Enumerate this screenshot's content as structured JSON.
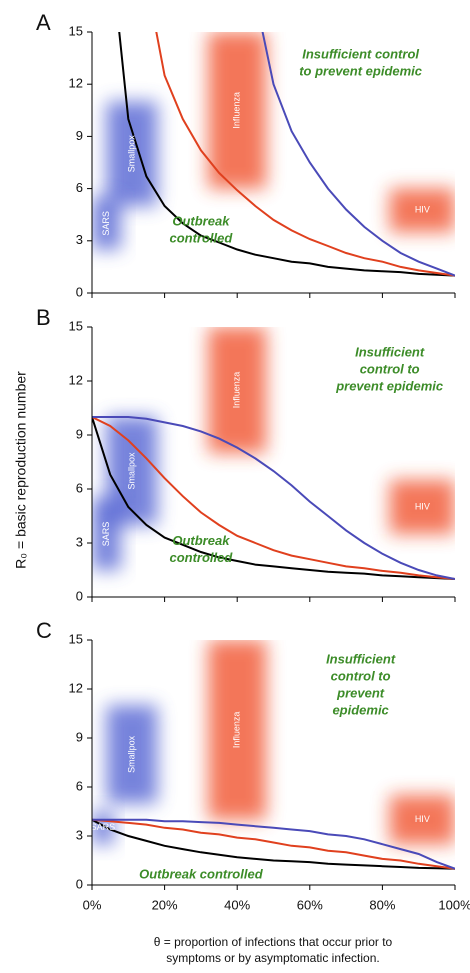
{
  "ylabel": "R₀ = basic reproduction number",
  "xlabel": [
    "θ = proportion of infections that occur prior to",
    "symptoms or by asymptomatic infection."
  ],
  "chart_data": [
    {
      "type": "line",
      "panel": "A",
      "x": [
        0,
        0.05,
        0.1,
        0.15,
        0.2,
        0.25,
        0.3,
        0.35,
        0.4,
        0.45,
        0.5,
        0.55,
        0.6,
        0.65,
        0.7,
        0.75,
        0.8,
        0.85,
        0.9,
        0.95,
        1
      ],
      "series": [
        {
          "color": "#000000",
          "values": [
            null,
            20,
            10,
            6.7,
            5,
            4,
            3.3,
            2.9,
            2.5,
            2.2,
            2,
            1.8,
            1.7,
            1.5,
            1.4,
            1.3,
            1.25,
            1.2,
            1.1,
            1.05,
            1
          ]
        },
        {
          "color": "#e0401e",
          "values": [
            null,
            null,
            null,
            18,
            12.5,
            10,
            8.2,
            6.9,
            5.9,
            5,
            4.2,
            3.6,
            3.1,
            2.7,
            2.3,
            2,
            1.8,
            1.5,
            1.3,
            1.15,
            1
          ]
        },
        {
          "color": "#4a4ab8",
          "values": [
            null,
            null,
            null,
            null,
            null,
            null,
            null,
            null,
            null,
            17,
            12,
            9.3,
            7.5,
            6,
            4.8,
            3.8,
            3,
            2.3,
            1.8,
            1.4,
            1
          ]
        }
      ],
      "regions": [
        {
          "name": "Smallpox",
          "color": "#4a5ad0",
          "x": [
            0.04,
            0.18
          ],
          "y": [
            5,
            11
          ]
        },
        {
          "name": "SARS",
          "color": "#4a5ad0",
          "x": [
            0,
            0.08
          ],
          "y": [
            2.5,
            5.5
          ]
        },
        {
          "name": "Influenza",
          "color": "#f04820",
          "x": [
            0.32,
            0.48
          ],
          "y": [
            6,
            15
          ]
        },
        {
          "name": "HIV",
          "color": "#f04820",
          "x": [
            0.82,
            1
          ],
          "y": [
            3.5,
            6
          ]
        }
      ],
      "annotations": [
        [
          "Insufficient control",
          "to prevent epidemic"
        ],
        [
          "Outbreak",
          "controlled"
        ]
      ],
      "xlim": [
        0,
        1
      ],
      "ylim": [
        0,
        15
      ],
      "xticks": [
        0,
        0.2,
        0.4,
        0.6,
        0.8,
        1
      ],
      "yticks": [
        0,
        3,
        6,
        9,
        12,
        15
      ]
    },
    {
      "type": "line",
      "panel": "B",
      "x": [
        0,
        0.05,
        0.1,
        0.15,
        0.2,
        0.25,
        0.3,
        0.35,
        0.4,
        0.45,
        0.5,
        0.55,
        0.6,
        0.65,
        0.7,
        0.75,
        0.8,
        0.85,
        0.9,
        0.95,
        1
      ],
      "series": [
        {
          "color": "#000000",
          "values": [
            10,
            6.8,
            5,
            4,
            3.3,
            2.9,
            2.5,
            2.2,
            2,
            1.8,
            1.7,
            1.6,
            1.5,
            1.4,
            1.35,
            1.3,
            1.2,
            1.15,
            1.1,
            1.05,
            1
          ]
        },
        {
          "color": "#e0401e",
          "values": [
            10,
            9.5,
            8.7,
            7.7,
            6.6,
            5.6,
            4.7,
            4,
            3.4,
            3,
            2.6,
            2.3,
            2.1,
            1.9,
            1.7,
            1.6,
            1.45,
            1.35,
            1.2,
            1.1,
            1
          ]
        },
        {
          "color": "#4a4ab8",
          "values": [
            10,
            10,
            10,
            9.9,
            9.7,
            9.5,
            9.2,
            8.8,
            8.3,
            7.7,
            7,
            6.2,
            5.3,
            4.5,
            3.7,
            3,
            2.4,
            1.9,
            1.5,
            1.2,
            1
          ]
        }
      ],
      "regions": [
        {
          "name": "Smallpox",
          "color": "#4a5ad0",
          "x": [
            0.04,
            0.18
          ],
          "y": [
            4,
            10
          ]
        },
        {
          "name": "SARS",
          "color": "#4a5ad0",
          "x": [
            0,
            0.08
          ],
          "y": [
            1.5,
            5.5
          ]
        },
        {
          "name": "Influenza",
          "color": "#f04820",
          "x": [
            0.32,
            0.48
          ],
          "y": [
            8,
            15
          ]
        },
        {
          "name": "HIV",
          "color": "#f04820",
          "x": [
            0.82,
            1
          ],
          "y": [
            3.5,
            6.5
          ]
        }
      ],
      "annotations": [
        [
          "Insufficient",
          "control to",
          "prevent epidemic"
        ],
        [
          "Outbreak",
          "controlled"
        ]
      ],
      "xlim": [
        0,
        1
      ],
      "ylim": [
        0,
        15
      ],
      "xticks": [
        0,
        0.2,
        0.4,
        0.6,
        0.8,
        1
      ],
      "yticks": [
        0,
        3,
        6,
        9,
        12,
        15
      ]
    },
    {
      "type": "line",
      "panel": "C",
      "x": [
        0,
        0.05,
        0.1,
        0.15,
        0.2,
        0.25,
        0.3,
        0.35,
        0.4,
        0.45,
        0.5,
        0.55,
        0.6,
        0.65,
        0.7,
        0.75,
        0.8,
        0.85,
        0.9,
        0.95,
        1
      ],
      "series": [
        {
          "color": "#000000",
          "values": [
            4,
            3.4,
            3,
            2.7,
            2.4,
            2.2,
            2,
            1.85,
            1.7,
            1.6,
            1.5,
            1.45,
            1.4,
            1.3,
            1.25,
            1.2,
            1.15,
            1.1,
            1.05,
            1.02,
            1
          ]
        },
        {
          "color": "#e0401e",
          "values": [
            4,
            3.9,
            3.8,
            3.7,
            3.5,
            3.4,
            3.2,
            3.1,
            2.9,
            2.8,
            2.6,
            2.4,
            2.3,
            2.1,
            2,
            1.8,
            1.6,
            1.5,
            1.3,
            1.15,
            1
          ]
        },
        {
          "color": "#4a4ab8",
          "values": [
            4,
            4,
            4,
            4,
            3.9,
            3.9,
            3.85,
            3.8,
            3.7,
            3.6,
            3.5,
            3.4,
            3.3,
            3.1,
            3,
            2.8,
            2.5,
            2.2,
            1.9,
            1.4,
            1
          ]
        }
      ],
      "regions": [
        {
          "name": "Smallpox",
          "color": "#4a5ad0",
          "x": [
            0.04,
            0.18
          ],
          "y": [
            5,
            11
          ]
        },
        {
          "name": "SARS",
          "color": "#4a5ad0",
          "x": [
            0,
            0.06
          ],
          "y": [
            2.5,
            4.5
          ]
        },
        {
          "name": "Influenza",
          "color": "#f04820",
          "x": [
            0.32,
            0.48
          ],
          "y": [
            4,
            15
          ]
        },
        {
          "name": "HIV",
          "color": "#f04820",
          "x": [
            0.82,
            1
          ],
          "y": [
            2.5,
            5.5
          ]
        }
      ],
      "annotations": [
        [
          "Insufficient",
          "control to",
          "prevent",
          "epidemic"
        ],
        [
          "Outbreak controlled"
        ]
      ],
      "xlim": [
        0,
        1
      ],
      "ylim": [
        0,
        15
      ],
      "xticks": [
        {
          "value": 0,
          "label": "0%"
        },
        {
          "value": 0.2,
          "label": "20%"
        },
        {
          "value": 0.4,
          "label": "40%"
        },
        {
          "value": 0.6,
          "label": "60%"
        },
        {
          "value": 0.8,
          "label": "80%"
        },
        {
          "value": 1,
          "label": "100%"
        }
      ],
      "yticks": [
        0,
        3,
        6,
        9,
        12,
        15
      ]
    }
  ]
}
